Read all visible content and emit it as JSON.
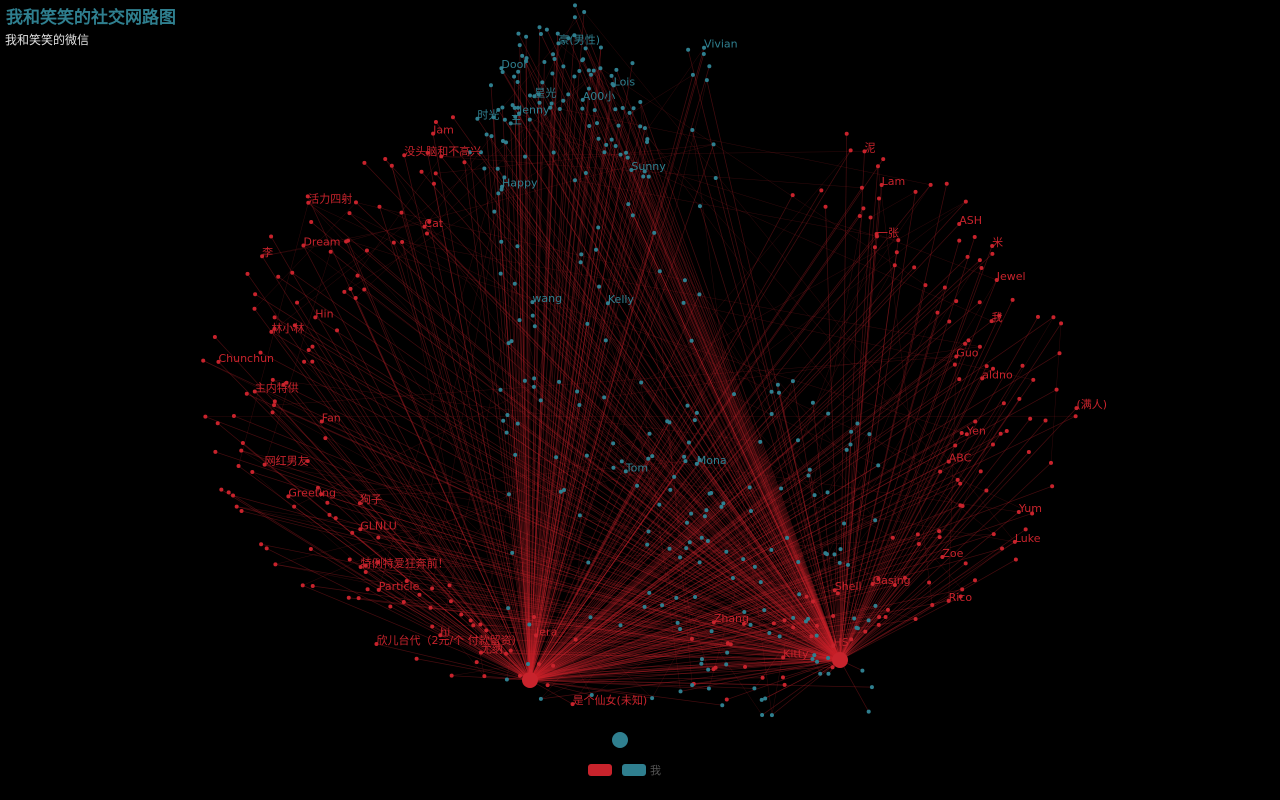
{
  "header": {
    "title": "我和笑笑的社交网路图",
    "subtitle": "我和笑笑的微信"
  },
  "legend": [
    {
      "label": "",
      "color": "#c8232c"
    },
    {
      "label": "我",
      "color": "#2f7f8f"
    }
  ],
  "colors": {
    "background": "#000000",
    "red_group": "#c8232c",
    "teal_group": "#2f7f8f"
  },
  "chart_data": {
    "type": "network",
    "groups": [
      {
        "name": "",
        "color": "#c8232c",
        "labels": [
          "是个仙女(未知)",
          "尤纳",
          "欣儿台代（2元/个 付款留资）",
          "特例特爱狂奔前！",
          "狗子",
          "网红男友",
          "主内特供",
          "林小林",
          "李",
          "活力四射",
          "没头脑和不高兴",
          "泥",
          "一张",
          "米",
          "我",
          "aldno",
          "Yen",
          "Yum",
          "Zoe",
          "Gasing",
          "HS",
          "Zhang",
          "Jera",
          "hi",
          "Particle",
          "GLNLU",
          "Greeting",
          "Fan",
          "Chunchun",
          "Hin",
          "Dream",
          "Cat",
          "Jam",
          "Lam",
          "ASH",
          "Jewel",
          "Guo",
          "(满人)",
          "ABC",
          "Luke",
          "Rico",
          "Shell",
          "Kitty"
        ]
      },
      {
        "name": "我",
        "color": "#2f7f8f",
        "labels": [
          "时光",
          "王",
          "星光",
          "豪(男性)",
          "A00小",
          "Lois",
          "Sunny",
          "Vivian",
          "Tom",
          "Jenny",
          "wang",
          "Kelly",
          "Door",
          "Happy",
          "Mona"
        ]
      }
    ]
  }
}
